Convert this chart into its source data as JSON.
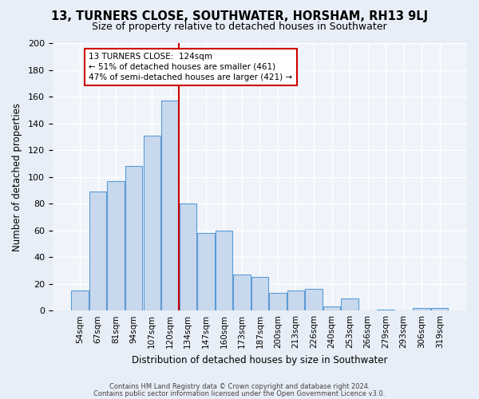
{
  "title": "13, TURNERS CLOSE, SOUTHWATER, HORSHAM, RH13 9LJ",
  "subtitle": "Size of property relative to detached houses in Southwater",
  "xlabel": "Distribution of detached houses by size in Southwater",
  "ylabel": "Number of detached properties",
  "bar_color": "#c8d9ed",
  "bar_edge_color": "#5b9bd5",
  "background_color": "#f0f4fa",
  "grid_color": "#ffffff",
  "categories": [
    "54sqm",
    "67sqm",
    "81sqm",
    "94sqm",
    "107sqm",
    "120sqm",
    "134sqm",
    "147sqm",
    "160sqm",
    "173sqm",
    "187sqm",
    "200sqm",
    "213sqm",
    "226sqm",
    "240sqm",
    "253sqm",
    "266sqm",
    "279sqm",
    "293sqm",
    "306sqm",
    "319sqm"
  ],
  "values": [
    15,
    89,
    97,
    108,
    131,
    157,
    80,
    58,
    60,
    27,
    25,
    13,
    15,
    16,
    3,
    9,
    0,
    1,
    0,
    2,
    2
  ],
  "vline_position": 5.5,
  "vline_color": "#cc0000",
  "annotation_lines": [
    "13 TURNERS CLOSE:  124sqm",
    "← 51% of detached houses are smaller (461)",
    "47% of semi-detached houses are larger (421) →"
  ],
  "ylim": [
    0,
    200
  ],
  "yticks": [
    0,
    20,
    40,
    60,
    80,
    100,
    120,
    140,
    160,
    180,
    200
  ],
  "footer1": "Contains HM Land Registry data © Crown copyright and database right 2024.",
  "footer2": "Contains public sector information licensed under the Open Government Licence v3.0."
}
